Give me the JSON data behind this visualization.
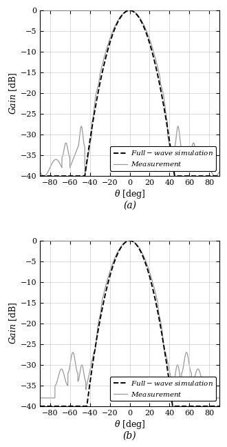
{
  "xlim": [
    -90,
    90
  ],
  "ylim": [
    -40,
    0
  ],
  "xticks": [
    -80,
    -60,
    -40,
    -20,
    0,
    20,
    40,
    60,
    80
  ],
  "yticks": [
    0,
    -5,
    -10,
    -15,
    -20,
    -25,
    -30,
    -35,
    -40
  ],
  "xlabel": "\\theta  [deg]",
  "ylabel": "Gain  [dB]",
  "label_a": "(a)",
  "label_b": "(b)",
  "sim_color": "#000000",
  "meas_color": "#999999",
  "sim_lw": 1.4,
  "meas_lw": 0.9,
  "grid_color": "#cccccc",
  "fig_bg": "#ffffff",
  "fontsize": 8
}
